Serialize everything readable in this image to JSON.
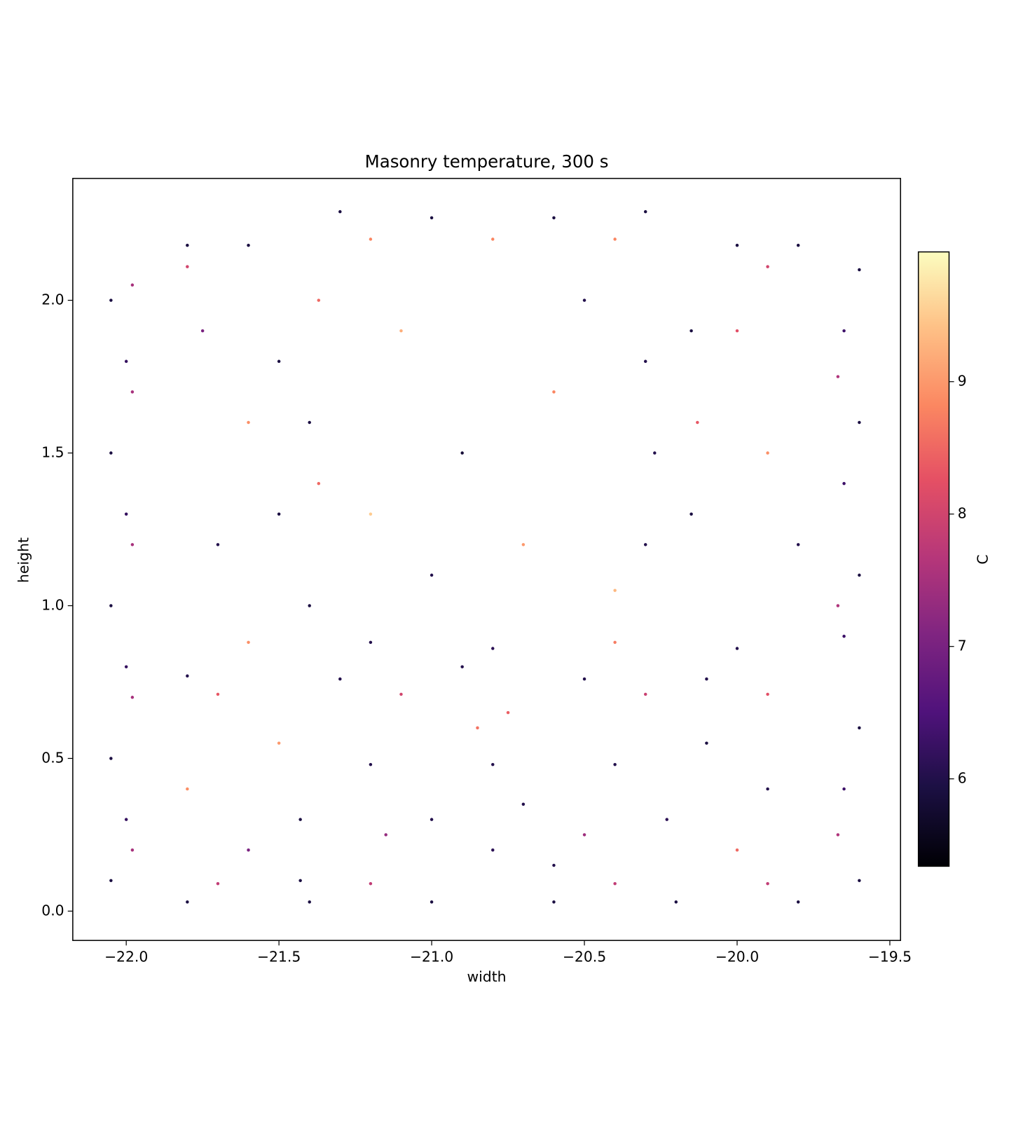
{
  "chart_data": {
    "type": "scatter",
    "title": "Masonry temperature, 300 s",
    "xlabel": "width",
    "ylabel": "height",
    "xlim": [
      -22.175,
      -19.465
    ],
    "ylim": [
      -0.096,
      2.399
    ],
    "xticks": [
      {
        "value": -22,
        "label": "−22.0"
      },
      {
        "value": -21.5,
        "label": "−21.5"
      },
      {
        "value": -21,
        "label": "−21.0"
      },
      {
        "value": -20.5,
        "label": "−20.5"
      },
      {
        "value": -20,
        "label": "−20.0"
      },
      {
        "value": -19.5,
        "label": "−19.5"
      }
    ],
    "yticks": [
      {
        "value": 0,
        "label": "0.0"
      },
      {
        "value": 0.5,
        "label": "0.5"
      },
      {
        "value": 1,
        "label": "1.0"
      },
      {
        "value": 1.5,
        "label": "1.5"
      },
      {
        "value": 2,
        "label": "2.0"
      }
    ],
    "colormap": "magma",
    "colorbar": {
      "label": "C",
      "lim": [
        5.34,
        9.98
      ],
      "ticks": [
        6,
        7,
        8,
        9
      ]
    },
    "x": [
      -22.05,
      -22.05,
      -22.05,
      -22.05,
      -22.05,
      -22.0,
      -22.0,
      -22.0,
      -22.0,
      -21.98,
      -21.98,
      -21.98,
      -21.98,
      -21.98,
      -19.6,
      -19.6,
      -19.6,
      -19.6,
      -19.6,
      -19.65,
      -19.65,
      -19.65,
      -19.65,
      -19.67,
      -19.67,
      -19.67,
      -21.8,
      -21.4,
      -21.0,
      -20.6,
      -20.2,
      -19.8,
      -21.7,
      -21.2,
      -20.4,
      -19.9,
      -21.8,
      -21.6,
      -20.0,
      -19.8,
      -21.3,
      -21.0,
      -20.6,
      -20.3,
      -21.2,
      -20.8,
      -20.4,
      -21.8,
      -19.9,
      -21.5,
      -21.5,
      -21.4,
      -21.4,
      -21.37,
      -21.37,
      -20.3,
      -20.3,
      -20.27,
      -20.15,
      -20.15,
      -20.13,
      -21.6,
      -21.2,
      -20.8,
      -20.4,
      -20.0,
      -21.8,
      -21.3,
      -20.9,
      -20.5,
      -20.1,
      -21.7,
      -21.1,
      -20.3,
      -19.9,
      -21.43,
      -21.43,
      -21.2,
      -20.8,
      -20.4,
      -20.23,
      -21.15,
      -20.5,
      -21.0,
      -20.8,
      -20.7,
      -20.6,
      -20.85,
      -20.75,
      -21.8,
      -21.7,
      -21.6,
      -21.75,
      -21.1,
      -20.9,
      -20.7,
      -21.0,
      -20.6,
      -20.5,
      -19.9,
      -19.8,
      -20.0,
      -19.9,
      -20.0,
      -21.6,
      -21.5,
      -20.1,
      -21.2,
      -20.4
    ],
    "y": [
      0.1,
      0.5,
      1.0,
      1.5,
      2.0,
      0.3,
      0.8,
      1.3,
      1.8,
      0.2,
      0.7,
      1.2,
      1.7,
      2.05,
      0.1,
      0.6,
      1.1,
      1.6,
      2.1,
      0.4,
      0.9,
      1.4,
      1.9,
      0.25,
      1.0,
      1.75,
      0.03,
      0.03,
      0.03,
      0.03,
      0.03,
      0.03,
      0.09,
      0.09,
      0.09,
      0.09,
      2.18,
      2.18,
      2.18,
      2.18,
      2.29,
      2.27,
      2.27,
      2.29,
      2.2,
      2.2,
      2.2,
      2.11,
      2.11,
      1.3,
      1.8,
      1.0,
      1.6,
      2.0,
      1.4,
      1.2,
      1.8,
      1.5,
      1.3,
      1.9,
      1.6,
      0.88,
      0.88,
      0.86,
      0.88,
      0.86,
      0.77,
      0.76,
      0.8,
      0.76,
      0.76,
      0.71,
      0.71,
      0.71,
      0.71,
      0.3,
      0.1,
      0.48,
      0.48,
      0.48,
      0.3,
      0.25,
      0.25,
      0.3,
      0.2,
      0.35,
      0.15,
      0.6,
      0.65,
      0.4,
      1.2,
      1.6,
      1.9,
      1.9,
      1.5,
      1.2,
      1.1,
      1.7,
      2.0,
      1.5,
      1.2,
      1.9,
      0.4,
      0.2,
      0.2,
      0.55,
      0.55,
      1.3,
      1.05
    ],
    "values": [
      5.9,
      5.9,
      5.9,
      5.9,
      5.9,
      6.2,
      6.2,
      6.2,
      6.2,
      7.5,
      7.5,
      7.5,
      7.5,
      7.5,
      5.9,
      5.9,
      5.9,
      5.9,
      5.9,
      6.3,
      6.3,
      6.3,
      6.3,
      7.6,
      7.6,
      7.6,
      5.9,
      5.9,
      5.9,
      5.9,
      5.9,
      5.9,
      7.8,
      7.8,
      7.8,
      7.8,
      5.9,
      5.9,
      5.9,
      5.9,
      5.9,
      5.9,
      5.9,
      5.9,
      8.8,
      8.8,
      8.8,
      8.0,
      8.0,
      5.9,
      5.9,
      5.9,
      5.9,
      8.5,
      8.5,
      6.0,
      6.0,
      6.0,
      5.9,
      5.9,
      8.3,
      8.9,
      6.0,
      6.1,
      8.7,
      6.0,
      6.0,
      6.0,
      6.0,
      6.0,
      6.0,
      8.3,
      8.0,
      7.9,
      8.2,
      5.9,
      5.9,
      6.0,
      6.0,
      6.0,
      6.1,
      7.3,
      7.4,
      6.0,
      6.1,
      6.0,
      6.0,
      8.6,
      8.4,
      8.9,
      6.0,
      8.9,
      7.0,
      9.2,
      5.8,
      9.0,
      6.0,
      8.8,
      6.0,
      8.9,
      6.0,
      8.2,
      6.0,
      8.5,
      7.0,
      9.0,
      5.9,
      9.5,
      9.3
    ]
  }
}
